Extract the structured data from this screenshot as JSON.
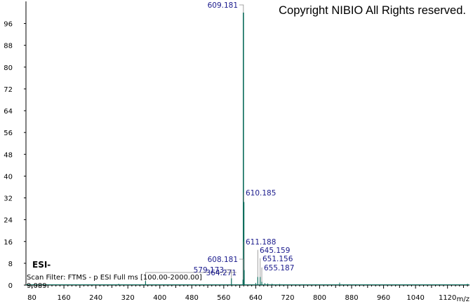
{
  "copyright": "Copyright NIBIO All Rights reserved.",
  "ion_mode": "ESI-",
  "scan_filter": "Scan Filter: FTMS - p ESI Full ms [100.00-2000.00]",
  "scan_value": "9.089",
  "colors": {
    "trace": "#0a6b5a",
    "peak_label": "#1a1a8c",
    "axis": "#000000"
  },
  "chart_data": {
    "type": "line",
    "title": "",
    "xlabel": "m/z",
    "ylabel": "",
    "xlim": [
      65,
      1175
    ],
    "ylim": [
      0,
      100
    ],
    "x_ticks": [
      80,
      160,
      240,
      320,
      400,
      480,
      560,
      640,
      720,
      800,
      880,
      960,
      1040,
      1120
    ],
    "y_ticks": [
      0,
      8,
      16,
      24,
      32,
      40,
      48,
      56,
      64,
      72,
      80,
      88,
      96
    ],
    "grid": false,
    "peaks": [
      {
        "mz": 364.271,
        "intensity": 1.5,
        "label": "364.271"
      },
      {
        "mz": 579.173,
        "intensity": 2.5,
        "label": "579.173"
      },
      {
        "mz": 608.181,
        "intensity": 2.0,
        "label": "608.181"
      },
      {
        "mz": 609.181,
        "intensity": 100,
        "label": "609.181"
      },
      {
        "mz": 610.185,
        "intensity": 30.5,
        "label": "610.185"
      },
      {
        "mz": 611.188,
        "intensity": 5.5,
        "label": "611.188"
      },
      {
        "mz": 645.159,
        "intensity": 3.0,
        "label": "645.159"
      },
      {
        "mz": 651.156,
        "intensity": 3.0,
        "label": "651.156"
      },
      {
        "mz": 655.187,
        "intensity": 1.2,
        "label": "655.187"
      }
    ],
    "minor_peaks": [
      {
        "mz": 297.0,
        "intensity": 0.5
      },
      {
        "mz": 640.0,
        "intensity": 0.8
      },
      {
        "mz": 663.0,
        "intensity": 0.7
      },
      {
        "mz": 670.0,
        "intensity": 0.6
      },
      {
        "mz": 681.0,
        "intensity": 0.5
      },
      {
        "mz": 700.0,
        "intensity": 0.4
      },
      {
        "mz": 760.0,
        "intensity": 0.3
      },
      {
        "mz": 850.0,
        "intensity": 0.9
      },
      {
        "mz": 920.0,
        "intensity": 0.3
      },
      {
        "mz": 1100.0,
        "intensity": 0.3
      },
      {
        "mz": 1170.0,
        "intensity": 0.5
      }
    ]
  }
}
